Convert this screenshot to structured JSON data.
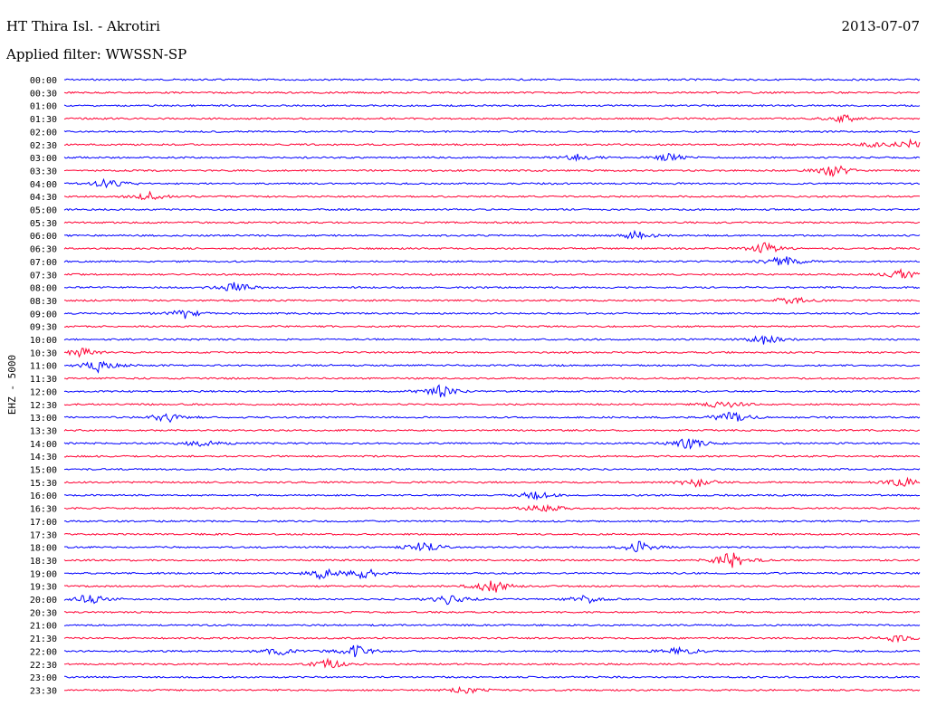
{
  "header": {
    "station": "HT Thira Isl. - Akrotiri",
    "date": "2013-07-07",
    "filter": "Applied filter: WWSSN-SP"
  },
  "chart_data": {
    "type": "line",
    "title": "HT Thira Isl. - Akrotiri",
    "ylabel": "EHZ - 5000",
    "row_labels": [
      "00:00",
      "00:30",
      "01:00",
      "01:30",
      "02:00",
      "02:30",
      "03:00",
      "03:30",
      "04:00",
      "04:30",
      "05:00",
      "05:30",
      "06:00",
      "06:30",
      "07:00",
      "07:30",
      "08:00",
      "08:30",
      "09:00",
      "09:30",
      "10:00",
      "10:30",
      "11:00",
      "11:30",
      "12:00",
      "12:30",
      "13:00",
      "13:30",
      "14:00",
      "14:30",
      "15:00",
      "15:30",
      "16:00",
      "16:30",
      "17:00",
      "17:30",
      "18:00",
      "18:30",
      "19:00",
      "19:30",
      "20:00",
      "20:30",
      "21:00",
      "21:30",
      "22:00",
      "22:30",
      "23:00",
      "23:30"
    ],
    "row_colors": [
      "#0000ff",
      "#ff0033"
    ],
    "grid": false,
    "events": [
      {
        "row": "01:30",
        "at": 0.91,
        "amp": 5
      },
      {
        "row": "02:30",
        "at": 0.95,
        "amp": 4
      },
      {
        "row": "02:30",
        "at": 0.99,
        "amp": 5
      },
      {
        "row": "03:00",
        "at": 0.6,
        "amp": 4
      },
      {
        "row": "03:00",
        "at": 0.71,
        "amp": 5
      },
      {
        "row": "03:30",
        "at": 0.9,
        "amp": 8
      },
      {
        "row": "04:00",
        "at": 0.05,
        "amp": 6
      },
      {
        "row": "04:30",
        "at": 0.1,
        "amp": 5
      },
      {
        "row": "06:00",
        "at": 0.67,
        "amp": 6
      },
      {
        "row": "06:30",
        "at": 0.82,
        "amp": 6
      },
      {
        "row": "07:00",
        "at": 0.84,
        "amp": 7
      },
      {
        "row": "07:30",
        "at": 0.98,
        "amp": 6
      },
      {
        "row": "08:00",
        "at": 0.2,
        "amp": 6
      },
      {
        "row": "08:30",
        "at": 0.85,
        "amp": 6
      },
      {
        "row": "09:00",
        "at": 0.14,
        "amp": 6
      },
      {
        "row": "10:00",
        "at": 0.82,
        "amp": 6
      },
      {
        "row": "10:30",
        "at": 0.02,
        "amp": 5
      },
      {
        "row": "11:00",
        "at": 0.04,
        "amp": 7
      },
      {
        "row": "12:00",
        "at": 0.44,
        "amp": 7
      },
      {
        "row": "12:30",
        "at": 0.77,
        "amp": 6
      },
      {
        "row": "13:00",
        "at": 0.12,
        "amp": 6
      },
      {
        "row": "13:00",
        "at": 0.78,
        "amp": 7
      },
      {
        "row": "14:00",
        "at": 0.73,
        "amp": 7
      },
      {
        "row": "14:00",
        "at": 0.16,
        "amp": 5
      },
      {
        "row": "15:30",
        "at": 0.74,
        "amp": 7
      },
      {
        "row": "15:30",
        "at": 0.98,
        "amp": 6
      },
      {
        "row": "16:00",
        "at": 0.55,
        "amp": 5
      },
      {
        "row": "16:30",
        "at": 0.56,
        "amp": 6
      },
      {
        "row": "18:00",
        "at": 0.42,
        "amp": 7
      },
      {
        "row": "18:00",
        "at": 0.67,
        "amp": 7
      },
      {
        "row": "18:30",
        "at": 0.78,
        "amp": 10
      },
      {
        "row": "19:00",
        "at": 0.3,
        "amp": 7
      },
      {
        "row": "19:00",
        "at": 0.35,
        "amp": 7
      },
      {
        "row": "19:30",
        "at": 0.5,
        "amp": 9
      },
      {
        "row": "20:00",
        "at": 0.03,
        "amp": 7
      },
      {
        "row": "20:00",
        "at": 0.45,
        "amp": 6
      },
      {
        "row": "20:00",
        "at": 0.61,
        "amp": 5
      },
      {
        "row": "21:30",
        "at": 0.97,
        "amp": 4
      },
      {
        "row": "22:00",
        "at": 0.25,
        "amp": 5
      },
      {
        "row": "22:00",
        "at": 0.34,
        "amp": 7
      },
      {
        "row": "22:00",
        "at": 0.72,
        "amp": 5
      },
      {
        "row": "22:30",
        "at": 0.31,
        "amp": 6
      },
      {
        "row": "23:30",
        "at": 0.47,
        "amp": 4
      }
    ]
  }
}
